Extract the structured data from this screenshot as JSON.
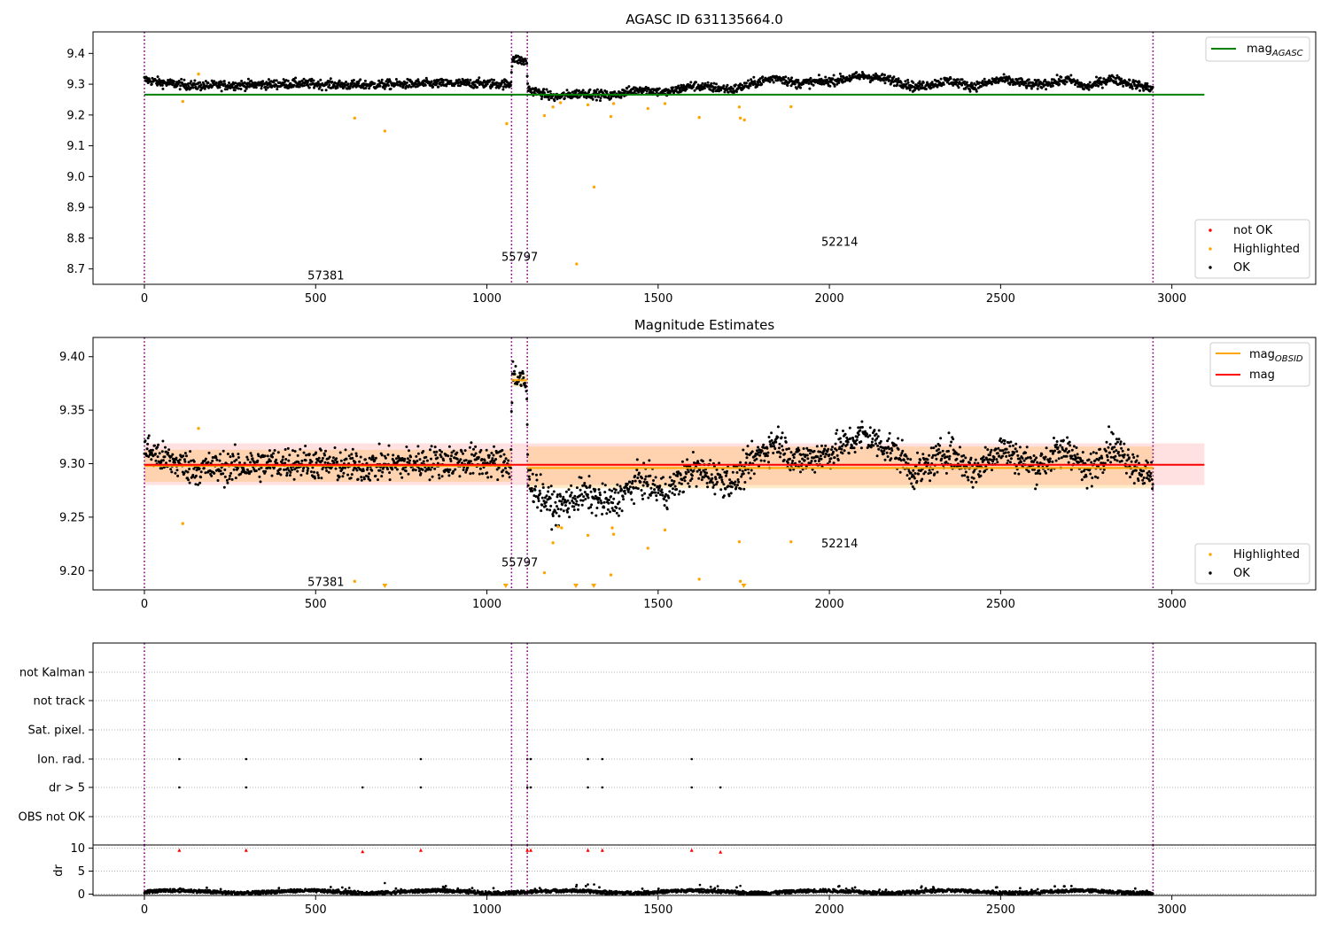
{
  "chart_data": [
    {
      "type": "scatter",
      "title": "AGASC ID 631135664.0",
      "xlim": [
        -150,
        3420
      ],
      "ylim": [
        8.65,
        9.47
      ],
      "x_ticks": [
        0,
        500,
        1000,
        1500,
        2000,
        2500,
        3000
      ],
      "y_ticks": [
        8.7,
        8.8,
        8.9,
        9.0,
        9.1,
        9.2,
        9.3,
        9.4
      ],
      "y_tick_labels": [
        "8.7",
        "8.8",
        "8.9",
        "9.0",
        "9.1",
        "9.2",
        "9.3",
        "9.4"
      ],
      "obsid_boundaries": [
        0,
        1072,
        1118,
        2945
      ],
      "obsid_labels": [
        {
          "text": "57381",
          "x": 530,
          "y": 8.68
        },
        {
          "text": "55797",
          "x": 1096,
          "y": 8.74
        },
        {
          "text": "52214",
          "x": 2030,
          "y": 8.79
        }
      ],
      "reference_line": {
        "name": "mag_AGASC",
        "y": 9.266,
        "x": [
          0,
          3095
        ],
        "color": "#008000"
      },
      "ok_trend": [
        {
          "x": 0,
          "y": 9.315
        },
        {
          "x": 50,
          "y": 9.305
        },
        {
          "x": 150,
          "y": 9.295
        },
        {
          "x": 300,
          "y": 9.298
        },
        {
          "x": 450,
          "y": 9.302
        },
        {
          "x": 600,
          "y": 9.297
        },
        {
          "x": 800,
          "y": 9.301
        },
        {
          "x": 950,
          "y": 9.303
        },
        {
          "x": 1070,
          "y": 9.3
        },
        {
          "x": 1074,
          "y": 9.385
        },
        {
          "x": 1116,
          "y": 9.372
        },
        {
          "x": 1120,
          "y": 9.285
        },
        {
          "x": 1160,
          "y": 9.27
        },
        {
          "x": 1200,
          "y": 9.258
        },
        {
          "x": 1280,
          "y": 9.272
        },
        {
          "x": 1360,
          "y": 9.262
        },
        {
          "x": 1450,
          "y": 9.285
        },
        {
          "x": 1520,
          "y": 9.272
        },
        {
          "x": 1600,
          "y": 9.295
        },
        {
          "x": 1720,
          "y": 9.283
        },
        {
          "x": 1800,
          "y": 9.31
        },
        {
          "x": 1850,
          "y": 9.322
        },
        {
          "x": 1900,
          "y": 9.302
        },
        {
          "x": 2000,
          "y": 9.31
        },
        {
          "x": 2100,
          "y": 9.327
        },
        {
          "x": 2200,
          "y": 9.31
        },
        {
          "x": 2250,
          "y": 9.29
        },
        {
          "x": 2350,
          "y": 9.312
        },
        {
          "x": 2420,
          "y": 9.292
        },
        {
          "x": 2500,
          "y": 9.315
        },
        {
          "x": 2600,
          "y": 9.297
        },
        {
          "x": 2700,
          "y": 9.315
        },
        {
          "x": 2750,
          "y": 9.29
        },
        {
          "x": 2820,
          "y": 9.318
        },
        {
          "x": 2945,
          "y": 9.285
        }
      ],
      "series": [
        {
          "name": "not OK",
          "color": "#ff0000",
          "points": []
        },
        {
          "name": "Highlighted",
          "color": "#ffa500",
          "points": [
            {
              "x": 112,
              "y": 9.244
            },
            {
              "x": 158,
              "y": 9.333
            },
            {
              "x": 614,
              "y": 9.19
            },
            {
              "x": 702,
              "y": 9.148
            },
            {
              "x": 1058,
              "y": 9.172
            },
            {
              "x": 1168,
              "y": 9.198
            },
            {
              "x": 1193,
              "y": 9.226
            },
            {
              "x": 1215,
              "y": 9.24
            },
            {
              "x": 1295,
              "y": 9.233
            },
            {
              "x": 1313,
              "y": 8.966
            },
            {
              "x": 1262,
              "y": 8.716
            },
            {
              "x": 1362,
              "y": 9.195
            },
            {
              "x": 1370,
              "y": 9.237
            },
            {
              "x": 1470,
              "y": 9.221
            },
            {
              "x": 1520,
              "y": 9.237
            },
            {
              "x": 1620,
              "y": 9.192
            },
            {
              "x": 1737,
              "y": 9.226
            },
            {
              "x": 1740,
              "y": 9.19
            },
            {
              "x": 1752,
              "y": 9.184
            },
            {
              "x": 1888,
              "y": 9.227
            }
          ]
        },
        {
          "name": "OK",
          "color": "#000000",
          "points": []
        }
      ],
      "legend": [
        {
          "name": "not OK",
          "position": "lower-right"
        },
        {
          "name": "Highlighted",
          "position": "lower-right"
        },
        {
          "name": "OK",
          "position": "lower-right"
        }
      ],
      "legend_top": {
        "label": "mag",
        "subscript": "AGASC",
        "position": "upper-right"
      }
    },
    {
      "type": "scatter",
      "title": "Magnitude Estimates",
      "xlim": [
        -150,
        3420
      ],
      "ylim": [
        9.182,
        9.418
      ],
      "x_ticks": [
        0,
        500,
        1000,
        1500,
        2000,
        2500,
        3000
      ],
      "y_ticks": [
        9.2,
        9.25,
        9.3,
        9.35,
        9.4
      ],
      "y_tick_labels": [
        "9.20",
        "9.25",
        "9.30",
        "9.35",
        "9.40"
      ],
      "obsid_boundaries": [
        0,
        1072,
        1118,
        2945
      ],
      "obsid_labels": [
        {
          "text": "57381",
          "x": 530,
          "y": 9.19
        },
        {
          "text": "55797",
          "x": 1096,
          "y": 9.208
        },
        {
          "text": "52214",
          "x": 2030,
          "y": 9.226
        }
      ],
      "mag": {
        "name": "mag",
        "y": 9.299,
        "band": [
          9.28,
          9.319
        ],
        "x": [
          0,
          3095
        ],
        "color": "#ff0000",
        "band_color": "#ffb3b3"
      },
      "mag_obsid": [
        {
          "x": [
            0,
            1072
          ],
          "y": 9.298,
          "band": [
            9.283,
            9.313
          ]
        },
        {
          "x": [
            1072,
            1118
          ],
          "y": 9.378,
          "band": [
            9.372,
            9.384
          ]
        },
        {
          "x": [
            1118,
            2945
          ],
          "y": 9.296,
          "band": [
            9.277,
            9.316
          ]
        }
      ],
      "mag_obsid_color": "#ffa500",
      "highlighted_clipped": [
        702,
        1055,
        1260,
        1312,
        1750
      ],
      "series": [
        {
          "name": "Highlighted",
          "color": "#ffa500",
          "points": [
            {
              "x": 112,
              "y": 9.244
            },
            {
              "x": 158,
              "y": 9.333
            },
            {
              "x": 614,
              "y": 9.19
            },
            {
              "x": 1168,
              "y": 9.198
            },
            {
              "x": 1193,
              "y": 9.226
            },
            {
              "x": 1208,
              "y": 9.241
            },
            {
              "x": 1218,
              "y": 9.24
            },
            {
              "x": 1295,
              "y": 9.233
            },
            {
              "x": 1362,
              "y": 9.196
            },
            {
              "x": 1366,
              "y": 9.24
            },
            {
              "x": 1370,
              "y": 9.234
            },
            {
              "x": 1470,
              "y": 9.221
            },
            {
              "x": 1520,
              "y": 9.238
            },
            {
              "x": 1620,
              "y": 9.192
            },
            {
              "x": 1737,
              "y": 9.227
            },
            {
              "x": 1740,
              "y": 9.19
            },
            {
              "x": 1888,
              "y": 9.227
            }
          ]
        },
        {
          "name": "OK",
          "color": "#000000",
          "points": []
        }
      ],
      "legend": [
        {
          "name": "Highlighted",
          "position": "lower-right"
        },
        {
          "name": "OK",
          "position": "lower-right"
        }
      ],
      "legend_top": [
        {
          "label": "mag",
          "subscript": "OBSID",
          "position": "upper-right"
        },
        {
          "label": "mag",
          "position": "upper-right"
        }
      ]
    },
    {
      "type": "scatter",
      "xlim": [
        -150,
        3420
      ],
      "categories": [
        "not Kalman",
        "not track",
        "Sat. pixel.",
        "Ion. rad.",
        "dr > 5",
        "OBS not OK"
      ],
      "obsid_boundaries": [
        0,
        1072,
        1118,
        2945
      ],
      "flags": {
        "Ion. rad.": [
          102,
          297,
          807,
          1118,
          1128,
          1295,
          1337,
          1598
        ],
        "dr > 5": [
          102,
          297,
          637,
          807,
          1118,
          1128,
          1295,
          1337,
          1598,
          1682
        ]
      }
    },
    {
      "type": "scatter",
      "ylabel": "dr",
      "xlim": [
        -150,
        3420
      ],
      "ylim": [
        -0.3,
        10.7
      ],
      "x_ticks": [
        0,
        500,
        1000,
        1500,
        2000,
        2500,
        3000
      ],
      "y_ticks": [
        0,
        5,
        10
      ],
      "y_tick_labels": [
        "0",
        "5",
        "10"
      ],
      "obsid_boundaries": [
        0,
        1072,
        1118,
        2945
      ],
      "dr_series": {
        "name": "dr",
        "x_range": [
          0,
          2945
        ],
        "typical": 0.5,
        "color": "#000000"
      },
      "dr_outliers": [
        {
          "x": 702,
          "y": 2.4
        },
        {
          "x": 1262,
          "y": 2.0
        },
        {
          "x": 1295,
          "y": 2.1
        },
        {
          "x": 1313,
          "y": 2.1
        },
        {
          "x": 1622,
          "y": 2.0
        },
        {
          "x": 1740,
          "y": 1.8
        }
      ],
      "dr_clipped": [
        {
          "x": 102,
          "y": 9.6
        },
        {
          "x": 297,
          "y": 9.6
        },
        {
          "x": 637,
          "y": 9.3
        },
        {
          "x": 807,
          "y": 9.6
        },
        {
          "x": 1118,
          "y": 9.6
        },
        {
          "x": 1128,
          "y": 9.6
        },
        {
          "x": 1295,
          "y": 9.6
        },
        {
          "x": 1337,
          "y": 9.6
        },
        {
          "x": 1598,
          "y": 9.6
        },
        {
          "x": 1682,
          "y": 9.2
        }
      ],
      "clip_color": "#ff0000"
    }
  ]
}
